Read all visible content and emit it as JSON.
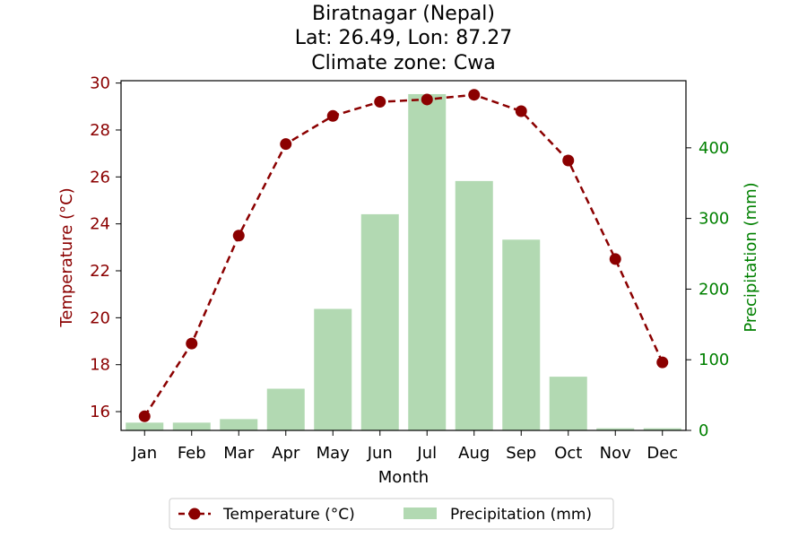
{
  "chart_data": {
    "type": "bar+line",
    "title_lines": [
      "Biratnagar (Nepal)",
      "Lat: 26.49, Lon: 87.27",
      "Climate zone: Cwa"
    ],
    "xlabel": "Month",
    "categories": [
      "Jan",
      "Feb",
      "Mar",
      "Apr",
      "May",
      "Jun",
      "Jul",
      "Aug",
      "Sep",
      "Oct",
      "Nov",
      "Dec"
    ],
    "temperature": {
      "name": "Temperature (°C)",
      "axis_label": "Temperature (°C)",
      "color": "#8b0000",
      "ylim": [
        15.2,
        30.1
      ],
      "ticks": [
        16,
        18,
        20,
        22,
        24,
        26,
        28,
        30
      ],
      "values": [
        15.8,
        18.9,
        23.5,
        27.4,
        28.6,
        29.2,
        29.3,
        29.5,
        28.8,
        26.7,
        22.5,
        18.1
      ]
    },
    "precipitation": {
      "name": "Precipitation (mm)",
      "axis_label": "Precipitation (mm)",
      "color": "#008000",
      "bar_color": "#b2d9b2",
      "ylim": [
        0,
        495
      ],
      "ticks": [
        0,
        100,
        200,
        300,
        400
      ],
      "values": [
        11,
        11,
        16,
        59,
        172,
        306,
        476,
        353,
        270,
        76,
        3,
        3
      ]
    },
    "legend_position": "bottom-center"
  }
}
